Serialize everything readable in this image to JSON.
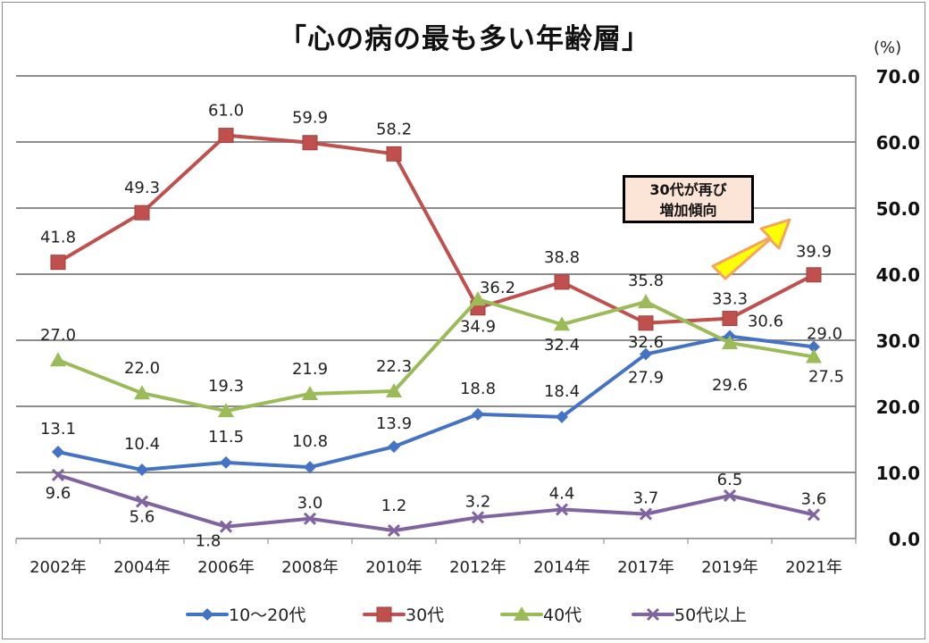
{
  "chart_data": {
    "type": "line",
    "title": "「心の病の最も多い年齢層」",
    "unit_label": "(%)",
    "categories": [
      "2002年",
      "2004年",
      "2006年",
      "2008年",
      "2010年",
      "2012年",
      "2014年",
      "2017年",
      "2019年",
      "2021年"
    ],
    "y_ticks": [
      "0.0",
      "10.0",
      "20.0",
      "30.0",
      "40.0",
      "50.0",
      "60.0",
      "70.0"
    ],
    "ylim": [
      0,
      70
    ],
    "y_axis_position": "right",
    "grid": true,
    "legend_position": "bottom",
    "series": [
      {
        "name": "10〜20代",
        "color": "#4472c4",
        "marker": "diamond",
        "values": [
          13.1,
          10.4,
          11.5,
          10.8,
          13.9,
          18.8,
          18.4,
          27.9,
          30.6,
          29.0
        ],
        "labels": [
          "13.1",
          "10.4",
          "11.5",
          "10.8",
          "13.9",
          "18.8",
          "18.4",
          "27.9",
          "30.6",
          "29.0"
        ]
      },
      {
        "name": "30代",
        "color": "#c0504d",
        "marker": "square",
        "values": [
          41.8,
          49.3,
          61.0,
          59.9,
          58.2,
          34.9,
          38.8,
          32.6,
          33.3,
          39.9
        ],
        "labels": [
          "41.8",
          "49.3",
          "61.0",
          "59.9",
          "58.2",
          "34.9",
          "38.8",
          "32.6",
          "33.3",
          "39.9"
        ]
      },
      {
        "name": "40代",
        "color": "#9bbb59",
        "marker": "triangle",
        "values": [
          27.0,
          22.0,
          19.3,
          21.9,
          22.3,
          36.2,
          32.4,
          35.8,
          29.6,
          27.5
        ],
        "labels": [
          "27.0",
          "22.0",
          "19.3",
          "21.9",
          "22.3",
          "36.2",
          "32.4",
          "35.8",
          "29.6",
          "27.5"
        ]
      },
      {
        "name": "50代以上",
        "color": "#8064a2",
        "marker": "x",
        "values": [
          9.6,
          5.6,
          1.8,
          3.0,
          1.2,
          3.2,
          4.4,
          3.7,
          6.5,
          3.6
        ],
        "labels": [
          "9.6",
          "5.6",
          "1.8",
          "3.0",
          "1.2",
          "3.2",
          "4.4",
          "3.7",
          "6.5",
          "3.6"
        ]
      }
    ],
    "annotation": {
      "lines": [
        "30代が再び",
        "増加傾向"
      ],
      "arrow_color": "#ffff00",
      "arrow_outline": "#f4a460",
      "box_fill": "#fce4d6"
    }
  }
}
